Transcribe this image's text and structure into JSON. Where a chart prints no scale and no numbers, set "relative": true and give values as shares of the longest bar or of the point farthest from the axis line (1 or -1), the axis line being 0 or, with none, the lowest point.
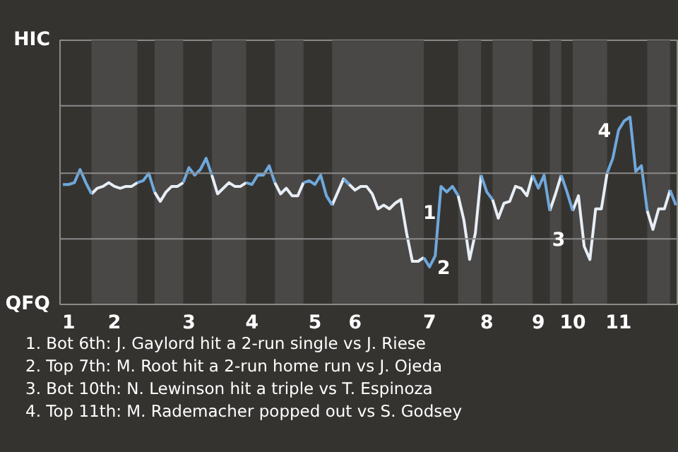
{
  "chart_data": {
    "type": "line",
    "relative": true,
    "marker": "none",
    "line_style": "solid",
    "categories": [
      null,
      "1",
      null,
      null,
      null,
      null,
      null,
      null,
      null,
      "2",
      null,
      null,
      null,
      null,
      null,
      null,
      null,
      null,
      null,
      null,
      null,
      null,
      "3",
      null,
      null,
      null,
      null,
      null,
      null,
      null,
      null,
      null,
      null,
      "4",
      null,
      null,
      null,
      null,
      null,
      null,
      null,
      null,
      null,
      null,
      "5",
      null,
      null,
      null,
      null,
      null,
      null,
      "6",
      null,
      null,
      null,
      null,
      null,
      null,
      null,
      null,
      null,
      null,
      null,
      null,
      "7",
      null,
      null,
      null,
      null,
      null,
      null,
      null,
      null,
      null,
      "8",
      null,
      null,
      null,
      null,
      null,
      null,
      null,
      null,
      "9",
      null,
      null,
      null,
      null,
      null,
      "10",
      null,
      null,
      null,
      null,
      null,
      null,
      null,
      "11",
      null,
      null,
      null,
      null,
      null,
      null,
      null,
      null,
      null,
      null
    ],
    "series": [
      {
        "color": "#e8eef5",
        "values": [
          null,
          null,
          null,
          null,
          null,
          0.59,
          0.62,
          0.63,
          0.65,
          0.63,
          0.62,
          0.63,
          0.63,
          0.65,
          null,
          null,
          0.6,
          0.55,
          0.6,
          0.63,
          0.63,
          0.65,
          null,
          null,
          null,
          null,
          0.69,
          0.59,
          0.62,
          0.65,
          0.63,
          0.63,
          0.65,
          null,
          null,
          null,
          null,
          0.65,
          0.59,
          0.62,
          0.58,
          0.58,
          0.65,
          null,
          null,
          null,
          null,
          0.53,
          0.6,
          0.67,
          0.64,
          0.61,
          0.63,
          0.63,
          0.59,
          0.51,
          0.53,
          0.51,
          0.54,
          0.56,
          0.38,
          0.23,
          0.23,
          0.25,
          null,
          null,
          null,
          null,
          null,
          0.58,
          0.45,
          0.24,
          0.38,
          0.69,
          null,
          0.56,
          0.46,
          0.54,
          0.55,
          0.63,
          0.62,
          0.58,
          0.69,
          null,
          null,
          0.5,
          0.59,
          0.69,
          null,
          0.5,
          0.58,
          0.31,
          0.24,
          0.51,
          0.51,
          0.7,
          null,
          null,
          null,
          null,
          null,
          null,
          0.5,
          0.4,
          0.51,
          0.51,
          0.61,
          null
        ],
        "name": null
      },
      {
        "color": "#6fa8dc",
        "values": [
          0.64,
          0.64,
          0.65,
          0.72,
          0.65,
          0.59,
          null,
          null,
          null,
          null,
          null,
          null,
          null,
          0.65,
          0.66,
          0.7,
          0.6,
          null,
          null,
          null,
          null,
          0.65,
          0.73,
          0.69,
          0.72,
          0.78,
          0.69,
          null,
          null,
          null,
          null,
          null,
          0.65,
          0.64,
          0.69,
          0.69,
          0.74,
          0.65,
          null,
          null,
          null,
          null,
          0.65,
          0.66,
          0.64,
          0.69,
          0.58,
          0.53,
          null,
          0.67,
          0.64,
          null,
          null,
          null,
          null,
          null,
          null,
          null,
          null,
          null,
          null,
          null,
          null,
          0.25,
          0.2,
          0.26,
          0.63,
          0.6,
          0.63,
          0.58,
          null,
          null,
          null,
          0.69,
          0.6,
          0.56,
          null,
          null,
          null,
          null,
          null,
          null,
          0.69,
          0.62,
          0.69,
          0.5,
          null,
          0.69,
          0.6,
          0.5,
          null,
          null,
          null,
          null,
          null,
          0.7,
          0.78,
          0.93,
          0.98,
          1,
          0.71,
          0.74,
          0.5,
          null,
          null,
          null,
          0.61,
          0.53
        ],
        "name": null
      }
    ],
    "ref_lines": [
      {
        "axis": "y",
        "value": 0.35,
        "label": null,
        "color": "#8a8a8a"
      },
      {
        "axis": "y",
        "value": 0.7,
        "label": null,
        "color": "#8a8a8a"
      },
      {
        "axis": "y",
        "value": 1.06,
        "label": null,
        "color": "#8a8a8a"
      }
    ],
    "annotations": [
      "HIC",
      "QFQ",
      {
        "text": "1",
        "x": "7",
        "y": 0.38
      },
      {
        "text": "2",
        "x": "7",
        "y": 0.2
      },
      {
        "text": "3",
        "x": "10",
        "y": 0.35
      },
      {
        "text": "4",
        "x": "11",
        "y": 0.93
      },
      "1. Bot 6th: J. Gaylord hit a 2-run single vs J. Riese",
      "2. Top 7th: M. Root hit a 2-run home run vs J. Ojeda",
      "3. Bot 10th: N. Lewinson hit a triple vs T. Espinoza",
      "4. Top 11th: M. Rademacher popped out vs S. Godsey"
    ]
  }
}
